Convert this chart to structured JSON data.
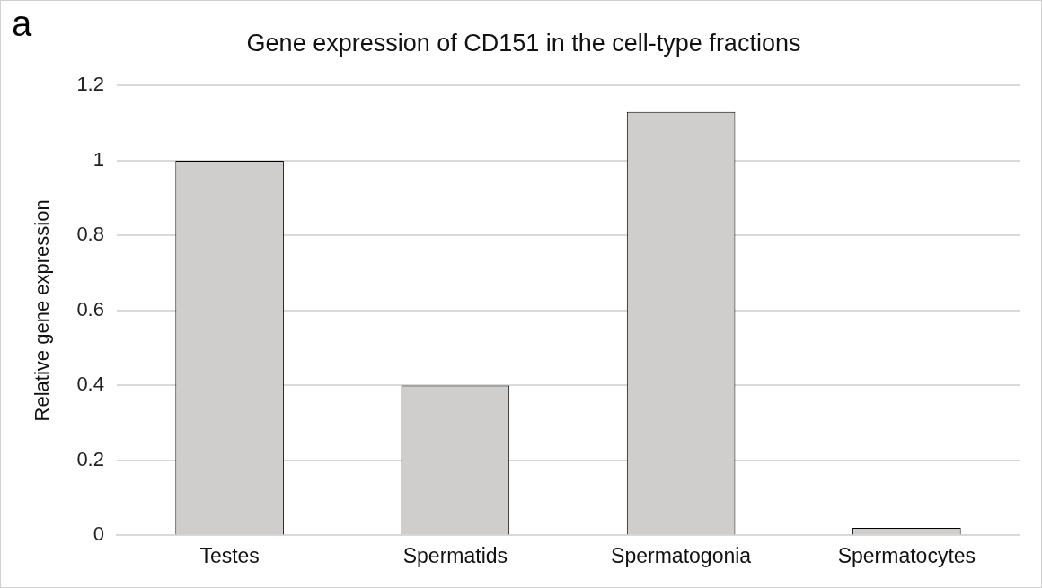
{
  "chart_data": {
    "type": "bar",
    "title": "Gene expression of CD151 in the cell-type fractions",
    "ylabel": "Relative gene expression",
    "annotations": [
      "a"
    ],
    "categories": [
      "Testes",
      "Spermatids",
      "Spermatogonia",
      "Spermatocytes"
    ],
    "values": [
      1.0,
      0.4,
      1.13,
      0.02
    ],
    "color": "#d0cecd",
    "ylim": [
      0,
      1.2
    ],
    "yticks": [
      0,
      0.2,
      0.4,
      0.6,
      0.8,
      1,
      1.2
    ],
    "grid": "y",
    "legend": false
  }
}
